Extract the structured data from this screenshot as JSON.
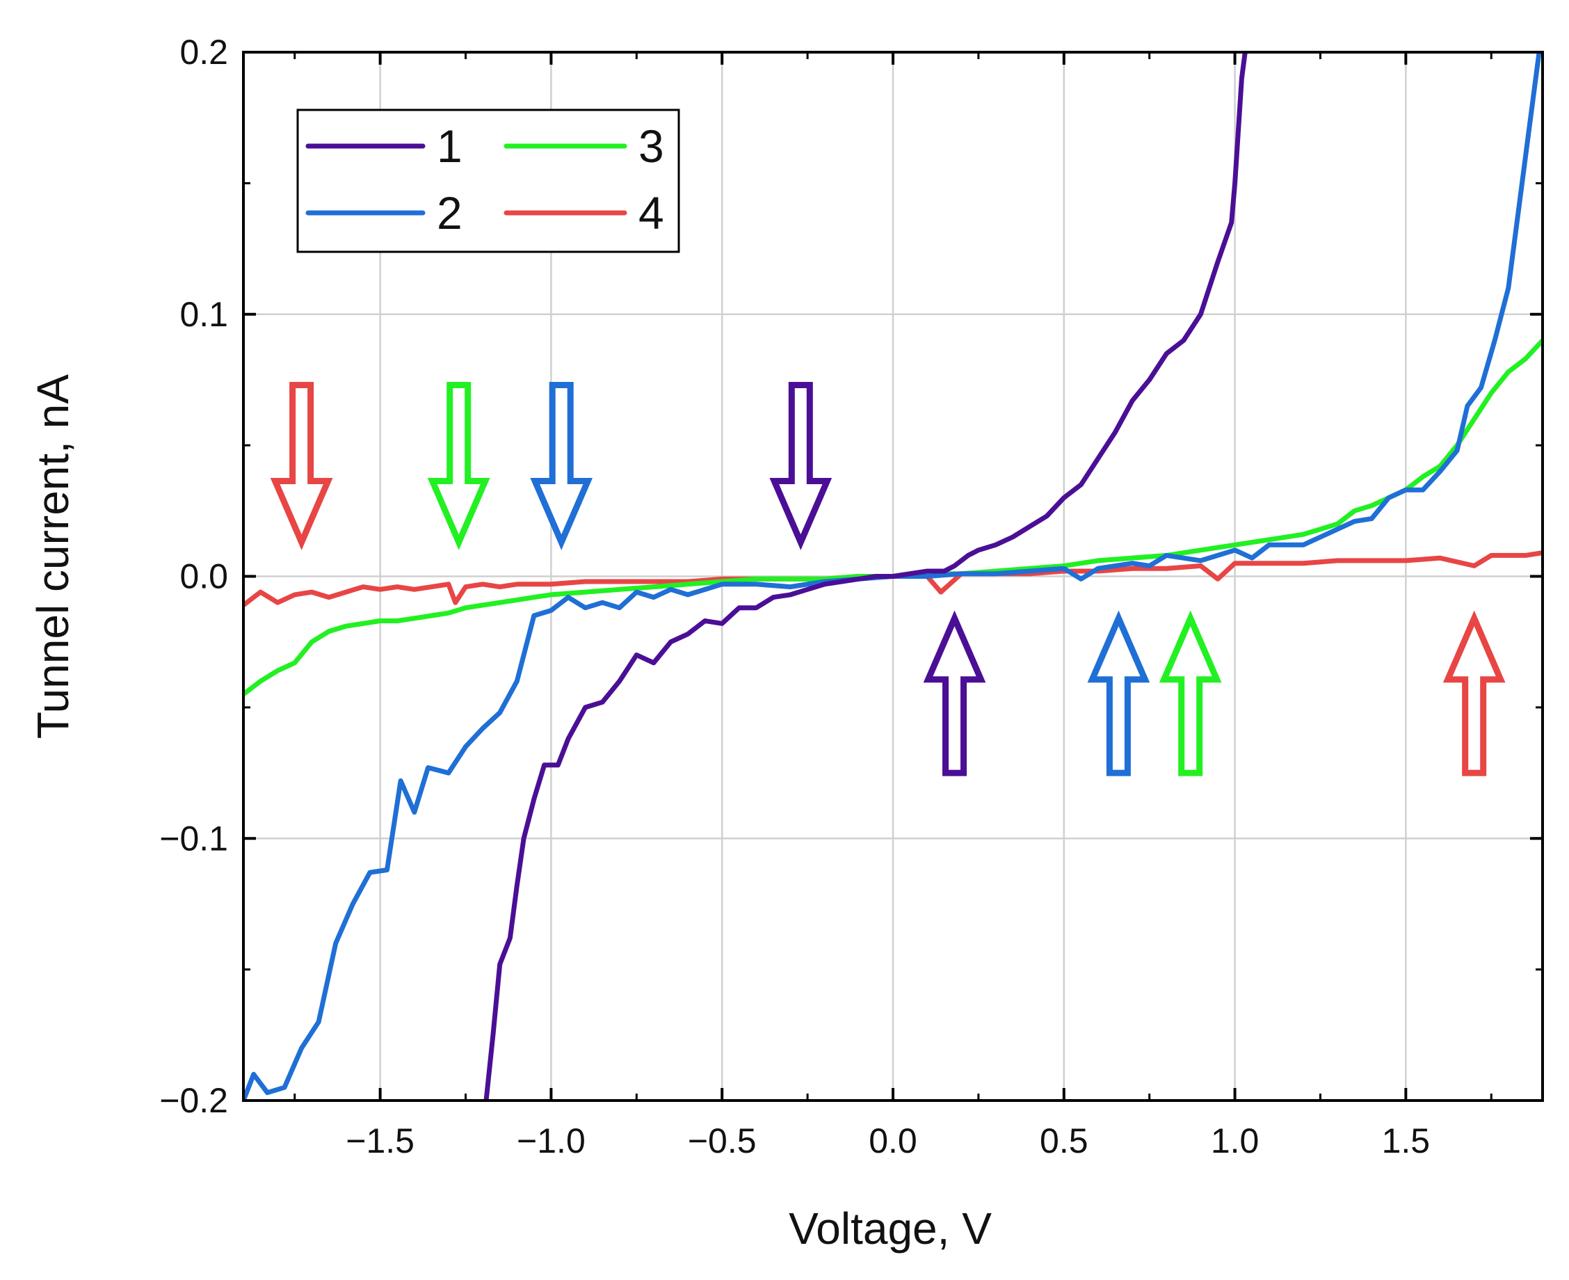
{
  "chart_data": {
    "type": "line",
    "title": "",
    "xlabel": "Voltage, V",
    "ylabel": "Tunnel current, nA",
    "xlim": [
      -1.9,
      1.9
    ],
    "ylim": [
      -0.2,
      0.2
    ],
    "grid": true,
    "legend_position": "top-left",
    "x_ticks": [
      -1.5,
      -1.0,
      -0.5,
      0.0,
      0.5,
      1.0,
      1.5
    ],
    "x_tick_labels": [
      "−1.5",
      "−1.0",
      "−0.5",
      "0.0",
      "0.5",
      "1.0",
      "1.5"
    ],
    "y_ticks": [
      -0.2,
      -0.1,
      0.0,
      0.1,
      0.2
    ],
    "y_tick_labels": [
      "−0.2",
      "−0.1",
      "0.0",
      "0.1",
      "0.2"
    ],
    "series": [
      {
        "name": "1",
        "color": "#4b0f96",
        "points": [
          [
            -1.19,
            -0.2
          ],
          [
            -1.17,
            -0.175
          ],
          [
            -1.15,
            -0.148
          ],
          [
            -1.12,
            -0.138
          ],
          [
            -1.1,
            -0.118
          ],
          [
            -1.08,
            -0.1
          ],
          [
            -1.05,
            -0.085
          ],
          [
            -1.02,
            -0.072
          ],
          [
            -0.98,
            -0.072
          ],
          [
            -0.95,
            -0.062
          ],
          [
            -0.9,
            -0.05
          ],
          [
            -0.85,
            -0.048
          ],
          [
            -0.8,
            -0.04
          ],
          [
            -0.75,
            -0.03
          ],
          [
            -0.7,
            -0.033
          ],
          [
            -0.65,
            -0.025
          ],
          [
            -0.6,
            -0.022
          ],
          [
            -0.55,
            -0.017
          ],
          [
            -0.5,
            -0.018
          ],
          [
            -0.45,
            -0.012
          ],
          [
            -0.4,
            -0.012
          ],
          [
            -0.35,
            -0.008
          ],
          [
            -0.3,
            -0.007
          ],
          [
            -0.25,
            -0.005
          ],
          [
            -0.2,
            -0.003
          ],
          [
            -0.15,
            -0.002
          ],
          [
            -0.1,
            -0.001
          ],
          [
            -0.05,
            0.0
          ],
          [
            0.0,
            0.0
          ],
          [
            0.05,
            0.001
          ],
          [
            0.1,
            0.002
          ],
          [
            0.15,
            0.002
          ],
          [
            0.18,
            0.004
          ],
          [
            0.22,
            0.008
          ],
          [
            0.25,
            0.01
          ],
          [
            0.3,
            0.012
          ],
          [
            0.35,
            0.015
          ],
          [
            0.4,
            0.019
          ],
          [
            0.45,
            0.023
          ],
          [
            0.5,
            0.03
          ],
          [
            0.55,
            0.035
          ],
          [
            0.6,
            0.045
          ],
          [
            0.65,
            0.055
          ],
          [
            0.7,
            0.067
          ],
          [
            0.75,
            0.075
          ],
          [
            0.8,
            0.085
          ],
          [
            0.85,
            0.09
          ],
          [
            0.9,
            0.1
          ],
          [
            0.95,
            0.12
          ],
          [
            0.99,
            0.135
          ],
          [
            1.0,
            0.15
          ],
          [
            1.01,
            0.17
          ],
          [
            1.02,
            0.19
          ],
          [
            1.03,
            0.2
          ]
        ]
      },
      {
        "name": "2",
        "color": "#1f6fd6",
        "points": [
          [
            -1.9,
            -0.2
          ],
          [
            -1.87,
            -0.19
          ],
          [
            -1.83,
            -0.197
          ],
          [
            -1.78,
            -0.195
          ],
          [
            -1.73,
            -0.18
          ],
          [
            -1.68,
            -0.17
          ],
          [
            -1.63,
            -0.14
          ],
          [
            -1.58,
            -0.125
          ],
          [
            -1.53,
            -0.113
          ],
          [
            -1.48,
            -0.112
          ],
          [
            -1.44,
            -0.078
          ],
          [
            -1.4,
            -0.09
          ],
          [
            -1.36,
            -0.073
          ],
          [
            -1.3,
            -0.075
          ],
          [
            -1.25,
            -0.065
          ],
          [
            -1.2,
            -0.058
          ],
          [
            -1.15,
            -0.052
          ],
          [
            -1.1,
            -0.04
          ],
          [
            -1.05,
            -0.015
          ],
          [
            -1.0,
            -0.013
          ],
          [
            -0.95,
            -0.008
          ],
          [
            -0.9,
            -0.012
          ],
          [
            -0.85,
            -0.01
          ],
          [
            -0.8,
            -0.012
          ],
          [
            -0.75,
            -0.006
          ],
          [
            -0.7,
            -0.008
          ],
          [
            -0.65,
            -0.005
          ],
          [
            -0.6,
            -0.007
          ],
          [
            -0.5,
            -0.003
          ],
          [
            -0.4,
            -0.003
          ],
          [
            -0.3,
            -0.004
          ],
          [
            -0.2,
            -0.002
          ],
          [
            -0.1,
            -0.001
          ],
          [
            0.0,
            0.0
          ],
          [
            0.1,
            0.0
          ],
          [
            0.2,
            0.001
          ],
          [
            0.3,
            0.001
          ],
          [
            0.4,
            0.002
          ],
          [
            0.5,
            0.003
          ],
          [
            0.55,
            -0.001
          ],
          [
            0.6,
            0.003
          ],
          [
            0.7,
            0.005
          ],
          [
            0.75,
            0.004
          ],
          [
            0.8,
            0.008
          ],
          [
            0.9,
            0.006
          ],
          [
            1.0,
            0.01
          ],
          [
            1.05,
            0.007
          ],
          [
            1.1,
            0.012
          ],
          [
            1.2,
            0.012
          ],
          [
            1.3,
            0.018
          ],
          [
            1.35,
            0.021
          ],
          [
            1.4,
            0.022
          ],
          [
            1.45,
            0.03
          ],
          [
            1.5,
            0.033
          ],
          [
            1.55,
            0.033
          ],
          [
            1.6,
            0.04
          ],
          [
            1.65,
            0.048
          ],
          [
            1.68,
            0.065
          ],
          [
            1.72,
            0.072
          ],
          [
            1.76,
            0.09
          ],
          [
            1.8,
            0.11
          ],
          [
            1.83,
            0.14
          ],
          [
            1.86,
            0.17
          ],
          [
            1.89,
            0.2
          ]
        ]
      },
      {
        "name": "3",
        "color": "#22f022",
        "points": [
          [
            -1.9,
            -0.045
          ],
          [
            -1.85,
            -0.04
          ],
          [
            -1.8,
            -0.036
          ],
          [
            -1.75,
            -0.033
          ],
          [
            -1.7,
            -0.025
          ],
          [
            -1.65,
            -0.021
          ],
          [
            -1.6,
            -0.019
          ],
          [
            -1.55,
            -0.018
          ],
          [
            -1.5,
            -0.017
          ],
          [
            -1.45,
            -0.017
          ],
          [
            -1.4,
            -0.016
          ],
          [
            -1.35,
            -0.015
          ],
          [
            -1.3,
            -0.014
          ],
          [
            -1.25,
            -0.012
          ],
          [
            -1.2,
            -0.011
          ],
          [
            -1.15,
            -0.01
          ],
          [
            -1.1,
            -0.009
          ],
          [
            -1.05,
            -0.008
          ],
          [
            -1.0,
            -0.007
          ],
          [
            -0.9,
            -0.006
          ],
          [
            -0.8,
            -0.005
          ],
          [
            -0.7,
            -0.004
          ],
          [
            -0.6,
            -0.003
          ],
          [
            -0.5,
            -0.002
          ],
          [
            -0.4,
            -0.001
          ],
          [
            -0.3,
            -0.001
          ],
          [
            -0.2,
            -0.001
          ],
          [
            -0.1,
            0.0
          ],
          [
            0.0,
            0.0
          ],
          [
            0.1,
            0.001
          ],
          [
            0.2,
            0.001
          ],
          [
            0.3,
            0.002
          ],
          [
            0.4,
            0.003
          ],
          [
            0.5,
            0.004
          ],
          [
            0.6,
            0.006
          ],
          [
            0.7,
            0.007
          ],
          [
            0.8,
            0.008
          ],
          [
            0.9,
            0.01
          ],
          [
            1.0,
            0.012
          ],
          [
            1.1,
            0.014
          ],
          [
            1.2,
            0.016
          ],
          [
            1.3,
            0.02
          ],
          [
            1.35,
            0.025
          ],
          [
            1.4,
            0.027
          ],
          [
            1.45,
            0.03
          ],
          [
            1.5,
            0.033
          ],
          [
            1.55,
            0.038
          ],
          [
            1.6,
            0.042
          ],
          [
            1.65,
            0.05
          ],
          [
            1.7,
            0.06
          ],
          [
            1.75,
            0.07
          ],
          [
            1.8,
            0.078
          ],
          [
            1.85,
            0.083
          ],
          [
            1.9,
            0.09
          ]
        ]
      },
      {
        "name": "4",
        "color": "#e84545",
        "points": [
          [
            -1.9,
            -0.011
          ],
          [
            -1.85,
            -0.006
          ],
          [
            -1.8,
            -0.01
          ],
          [
            -1.75,
            -0.007
          ],
          [
            -1.7,
            -0.006
          ],
          [
            -1.65,
            -0.008
          ],
          [
            -1.6,
            -0.006
          ],
          [
            -1.55,
            -0.004
          ],
          [
            -1.5,
            -0.005
          ],
          [
            -1.45,
            -0.004
          ],
          [
            -1.4,
            -0.005
          ],
          [
            -1.35,
            -0.004
          ],
          [
            -1.3,
            -0.003
          ],
          [
            -1.28,
            -0.01
          ],
          [
            -1.25,
            -0.004
          ],
          [
            -1.2,
            -0.003
          ],
          [
            -1.15,
            -0.004
          ],
          [
            -1.1,
            -0.003
          ],
          [
            -1.0,
            -0.003
          ],
          [
            -0.9,
            -0.002
          ],
          [
            -0.8,
            -0.002
          ],
          [
            -0.7,
            -0.002
          ],
          [
            -0.6,
            -0.002
          ],
          [
            -0.5,
            -0.001
          ],
          [
            -0.4,
            -0.001
          ],
          [
            -0.3,
            -0.001
          ],
          [
            -0.2,
            -0.001
          ],
          [
            -0.1,
            0.0
          ],
          [
            0.0,
            0.0
          ],
          [
            0.1,
            0.0
          ],
          [
            0.14,
            -0.006
          ],
          [
            0.2,
            0.001
          ],
          [
            0.3,
            0.001
          ],
          [
            0.4,
            0.001
          ],
          [
            0.5,
            0.002
          ],
          [
            0.6,
            0.002
          ],
          [
            0.7,
            0.003
          ],
          [
            0.8,
            0.003
          ],
          [
            0.9,
            0.004
          ],
          [
            0.95,
            -0.001
          ],
          [
            1.0,
            0.005
          ],
          [
            1.1,
            0.005
          ],
          [
            1.2,
            0.005
          ],
          [
            1.3,
            0.006
          ],
          [
            1.4,
            0.006
          ],
          [
            1.5,
            0.006
          ],
          [
            1.6,
            0.007
          ],
          [
            1.7,
            0.004
          ],
          [
            1.75,
            0.008
          ],
          [
            1.8,
            0.008
          ],
          [
            1.85,
            0.008
          ],
          [
            1.9,
            0.009
          ]
        ]
      }
    ],
    "annotations": [
      {
        "type": "arrow-down",
        "x": -1.73,
        "y_top": 0.073,
        "y_tip": 0.013,
        "color": "#e84545"
      },
      {
        "type": "arrow-down",
        "x": -1.27,
        "y_top": 0.073,
        "y_tip": 0.013,
        "color": "#22f022"
      },
      {
        "type": "arrow-down",
        "x": -0.97,
        "y_top": 0.073,
        "y_tip": 0.013,
        "color": "#1f6fd6"
      },
      {
        "type": "arrow-down",
        "x": -0.27,
        "y_top": 0.073,
        "y_tip": 0.013,
        "color": "#4b0f96"
      },
      {
        "type": "arrow-up",
        "x": 0.18,
        "y_bottom": -0.075,
        "y_tip": -0.016,
        "color": "#4b0f96"
      },
      {
        "type": "arrow-up",
        "x": 0.66,
        "y_bottom": -0.075,
        "y_tip": -0.016,
        "color": "#1f6fd6"
      },
      {
        "type": "arrow-up",
        "x": 0.87,
        "y_bottom": -0.075,
        "y_tip": -0.016,
        "color": "#22f022"
      },
      {
        "type": "arrow-up",
        "x": 1.7,
        "y_bottom": -0.075,
        "y_tip": -0.016,
        "color": "#e84545"
      }
    ]
  }
}
